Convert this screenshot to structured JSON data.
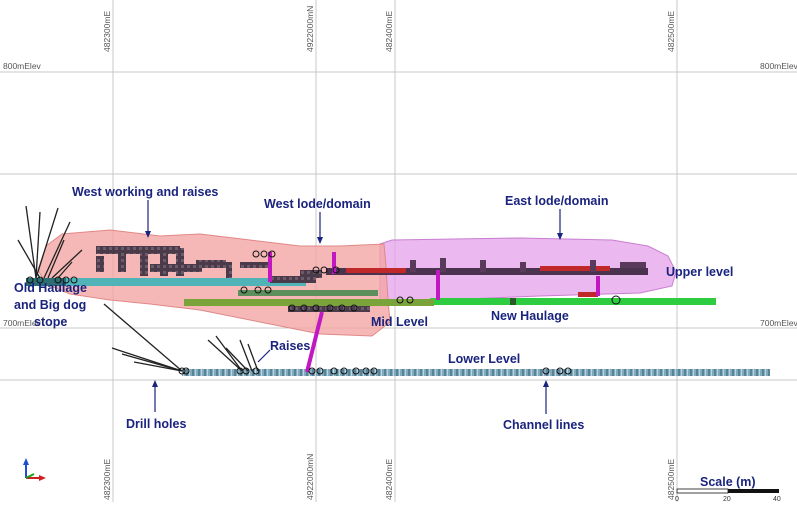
{
  "grid": {
    "easting_top": [
      "482300mE",
      "4922000mN",
      "482400mE",
      "482500mE"
    ],
    "easting_bottom": [
      "482300mE",
      "4922000mN",
      "482400mE",
      "482500mE"
    ],
    "elev_labels": {
      "e800_left": "800mElev",
      "e800_right": "800mElev",
      "e700_left": "700mElev",
      "e700_right": "700mElev"
    }
  },
  "labels": {
    "west_working": "West working and raises",
    "west_lode": "West lode/domain",
    "east_lode": "East lode/domain",
    "upper_level": "Upper level",
    "old_haulage_1": "Old Haulage",
    "old_haulage_2": "and Big dog",
    "old_haulage_3": "stope",
    "mid_level": "Mid Level",
    "new_haulage": "New Haulage",
    "raises": "Raises",
    "lower_level": "Lower Level",
    "drill_holes": "Drill holes",
    "channel_lines": "Channel lines"
  },
  "scale": {
    "title": "Scale (m)",
    "ticks": [
      "0",
      "20",
      "40"
    ]
  },
  "colors": {
    "west_domain": "#f3a6a4",
    "east_domain": "#e4a0ea",
    "old_haulage": "#4fb3b8",
    "mid_level": "#7aa33a",
    "new_haulage": "#2ecc40",
    "lower_level": "#6e9bb0",
    "raise": "#c218c2",
    "label": "#1a237e"
  },
  "axes_icon": [
    "x-axis-red",
    "y-axis-green",
    "z-axis-blue"
  ]
}
